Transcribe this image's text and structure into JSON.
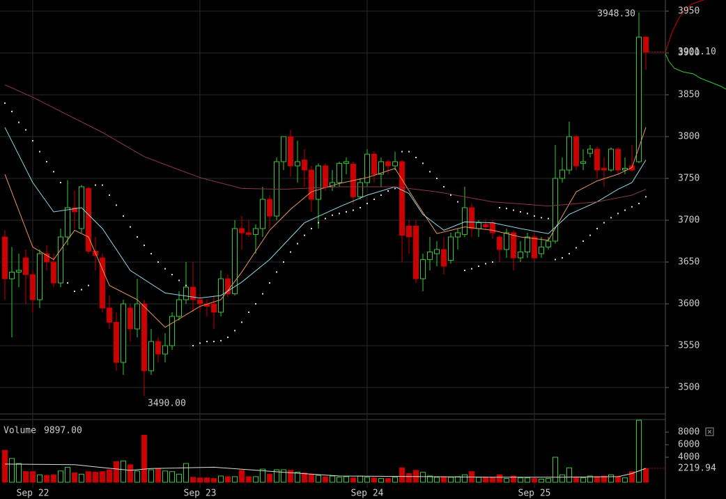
{
  "chart_data": {
    "type": "candlestick",
    "open": [
      3680,
      3630,
      3638,
      3655,
      3635,
      3605,
      3660,
      3650,
      3625,
      3680,
      3715,
      3690,
      3738,
      3663,
      3655,
      3595,
      3578,
      3530,
      3595,
      3570,
      3600,
      3520,
      3555,
      3540,
      3550,
      3585,
      3605,
      3620,
      3605,
      3600,
      3600,
      3590,
      3630,
      3612,
      3690,
      3685,
      3683,
      3690,
      3725,
      3705,
      3770,
      3800,
      3765,
      3772,
      3760,
      3725,
      3765,
      3740,
      3745,
      3768,
      3767,
      3728,
      3745,
      3779,
      3755,
      3770,
      3765,
      3770,
      3693,
      3693,
      3630,
      3653,
      3660,
      3665,
      3652,
      3680,
      3683,
      3715,
      3690,
      3695,
      3697,
      3680,
      3665,
      3685,
      3655,
      3662,
      3680,
      3660,
      3668,
      3675,
      3750,
      3760,
      3800,
      3768,
      3780,
      3785,
      3762,
      3760,
      3785,
      3760,
      3765,
      3770,
      3919
    ],
    "high": [
      3688,
      3668,
      3660,
      3665,
      3640,
      3665,
      3670,
      3660,
      3690,
      3748,
      3735,
      3742,
      3740,
      3680,
      3660,
      3610,
      3590,
      3605,
      3600,
      3630,
      3605,
      3570,
      3560,
      3565,
      3590,
      3615,
      3650,
      3650,
      3612,
      3605,
      3610,
      3640,
      3635,
      3700,
      3705,
      3700,
      3695,
      3740,
      3730,
      3775,
      3800,
      3808,
      3795,
      3785,
      3765,
      3768,
      3768,
      3760,
      3770,
      3775,
      3770,
      3750,
      3785,
      3782,
      3775,
      3772,
      3782,
      3772,
      3700,
      3700,
      3660,
      3680,
      3675,
      3680,
      3685,
      3690,
      3740,
      3720,
      3700,
      3700,
      3700,
      3682,
      3690,
      3688,
      3675,
      3685,
      3685,
      3680,
      3680,
      3790,
      3775,
      3818,
      3802,
      3785,
      3790,
      3788,
      3775,
      3787,
      3787,
      3775,
      3790,
      3948.3,
      3920
    ],
    "low": [
      3605,
      3560,
      3620,
      3600,
      3590,
      3595,
      3640,
      3620,
      3620,
      3670,
      3690,
      3685,
      3660,
      3640,
      3590,
      3570,
      3520,
      3515,
      3555,
      3560,
      3490,
      3515,
      3530,
      3530,
      3545,
      3580,
      3600,
      3590,
      3590,
      3585,
      3570,
      3585,
      3608,
      3610,
      3665,
      3680,
      3660,
      3680,
      3690,
      3700,
      3760,
      3752,
      3745,
      3740,
      3710,
      3690,
      3735,
      3735,
      3740,
      3755,
      3720,
      3725,
      3740,
      3745,
      3740,
      3755,
      3760,
      3650,
      3660,
      3625,
      3615,
      3640,
      3645,
      3635,
      3648,
      3665,
      3680,
      3680,
      3680,
      3688,
      3678,
      3650,
      3655,
      3640,
      3650,
      3655,
      3650,
      3655,
      3665,
      3672,
      3745,
      3755,
      3760,
      3760,
      3775,
      3750,
      3740,
      3758,
      3755,
      3755,
      3758,
      3768,
      3880
    ],
    "close": [
      3630,
      3638,
      3640,
      3635,
      3605,
      3660,
      3650,
      3625,
      3680,
      3715,
      3710,
      3740,
      3663,
      3658,
      3595,
      3578,
      3530,
      3600,
      3570,
      3600,
      3520,
      3555,
      3540,
      3550,
      3585,
      3605,
      3620,
      3605,
      3600,
      3597,
      3590,
      3630,
      3612,
      3690,
      3685,
      3683,
      3690,
      3725,
      3705,
      3770,
      3800,
      3765,
      3770,
      3760,
      3725,
      3765,
      3740,
      3745,
      3768,
      3770,
      3728,
      3745,
      3779,
      3755,
      3770,
      3765,
      3770,
      3682,
      3680,
      3630,
      3653,
      3662,
      3665,
      3645,
      3680,
      3685,
      3715,
      3690,
      3697,
      3692,
      3685,
      3665,
      3685,
      3655,
      3662,
      3680,
      3655,
      3668,
      3675,
      3750,
      3760,
      3800,
      3765,
      3770,
      3785,
      3760,
      3760,
      3785,
      3760,
      3762,
      3760,
      3919,
      3901.1
    ],
    "up_color": "#33cc33",
    "down_color": "#cc0000",
    "grid": true,
    "xlim": [
      -0.7,
      94.8
    ],
    "xticks": [
      {
        "value": 4,
        "label": "Sep 22"
      },
      {
        "value": 28,
        "label": "Sep 23"
      },
      {
        "value": 52,
        "label": "Sep 24"
      },
      {
        "value": 76,
        "label": "Sep 25"
      }
    ],
    "ylim": [
      3467.5,
      3963.3
    ],
    "yticks": [
      3500,
      3550,
      3600,
      3650,
      3700,
      3750,
      3800,
      3850,
      3900,
      3950
    ],
    "moving_averages": [
      {
        "color": "#e8965a",
        "x": [
          0,
          4,
          7,
          10,
          12,
          15,
          19,
          23,
          28,
          31,
          34,
          38,
          41,
          44,
          48,
          52,
          56,
          59,
          62,
          66,
          70,
          74,
          78,
          82,
          85,
          88,
          90,
          92
        ],
        "values": [
          3755,
          3668,
          3653,
          3688,
          3680,
          3622,
          3605,
          3572,
          3597,
          3605,
          3638,
          3688,
          3713,
          3734,
          3744,
          3751,
          3762,
          3722,
          3684,
          3692,
          3688,
          3680,
          3676,
          3734,
          3747,
          3755,
          3763,
          3811
        ]
      },
      {
        "color": "#8fd8e8",
        "x": [
          0,
          4,
          7,
          11,
          14,
          18,
          23,
          28,
          31,
          34,
          38,
          43,
          48,
          52,
          56,
          58,
          60,
          63,
          66,
          70,
          74,
          78,
          81,
          85,
          88,
          90,
          92
        ],
        "values": [
          3811,
          3745,
          3710,
          3715,
          3690,
          3640,
          3613,
          3607,
          3610,
          3626,
          3653,
          3697,
          3716,
          3730,
          3740,
          3732,
          3707,
          3688,
          3698,
          3697,
          3690,
          3684,
          3707,
          3722,
          3737,
          3745,
          3772
        ]
      },
      {
        "color": "#8a3a4a",
        "x": [
          0,
          4,
          9,
          14,
          20,
          28,
          34,
          40,
          48,
          56,
          62,
          70,
          78,
          85,
          90,
          92
        ],
        "values": [
          3862,
          3847,
          3826,
          3805,
          3776,
          3751,
          3738,
          3737,
          3740,
          3740,
          3734,
          3722,
          3717,
          3722,
          3730,
          3737
        ]
      }
    ],
    "sar": {
      "color": "#dddddd",
      "values": [
        3840,
        3830,
        3817,
        3808,
        3795,
        3782,
        3770,
        3758,
        3745,
        3625,
        3615,
        3617,
        3622,
        3742,
        3742,
        3730,
        3718,
        3705,
        3692,
        3680,
        3670,
        3660,
        3650,
        3642,
        3635,
        3628,
        3622,
        3550,
        3553,
        3555,
        3555,
        3556,
        3560,
        3568,
        3578,
        3590,
        3600,
        3612,
        3625,
        3638,
        3650,
        3662,
        3672,
        3682,
        3690,
        3697,
        3702,
        3706,
        3708,
        3710,
        3712,
        3715,
        3720,
        3725,
        3730,
        3735,
        3738,
        3782,
        3782,
        3775,
        3768,
        3758,
        3750,
        3740,
        3730,
        3722,
        3640,
        3642,
        3645,
        3648,
        3650,
        3715,
        3714,
        3712,
        3710,
        3708,
        3705,
        3703,
        3702,
        3653,
        3655,
        3660,
        3667,
        3675,
        3682,
        3690,
        3697,
        3703,
        3708,
        3712,
        3716,
        3720,
        3728
      ]
    },
    "high_annotation": {
      "value": 3948.3,
      "label": "3948.30",
      "index": 91
    },
    "low_annotation": {
      "value": 3490,
      "label": "3490.00",
      "index": 20
    },
    "last_price": {
      "value": 3901.1,
      "label": "3901.10"
    },
    "volume": {
      "label": "Volume",
      "max_label": {
        "value": 9897,
        "label": "9897.00"
      },
      "values": [
        5100,
        3800,
        3000,
        1700,
        1700,
        1200,
        1100,
        1200,
        1800,
        2400,
        1500,
        1300,
        1700,
        1600,
        1700,
        2000,
        3300,
        3400,
        2800,
        1800,
        7500,
        2000,
        2200,
        1800,
        1700,
        1300,
        3000,
        800,
        700,
        700,
        600,
        1000,
        900,
        900,
        1900,
        900,
        900,
        2100,
        1300,
        2000,
        2000,
        1900,
        1600,
        1500,
        1300,
        1100,
        900,
        1000,
        800,
        900,
        700,
        1000,
        800,
        700,
        600,
        600,
        800,
        2300,
        1400,
        1900,
        1600,
        1000,
        800,
        900,
        800,
        900,
        1200,
        1700,
        800,
        800,
        800,
        1200,
        600,
        1000,
        700,
        700,
        600,
        500,
        600,
        4000,
        1200,
        2300,
        800,
        700,
        1000,
        900,
        1000,
        1200,
        900,
        700,
        1700,
        9897,
        2200
      ],
      "ylim": [
        0,
        9900
      ],
      "yticks": [
        4000,
        6000,
        8000
      ],
      "ma": {
        "color": "#dddddd",
        "x": [
          0,
          10,
          18,
          21,
          30,
          40,
          48,
          60,
          70,
          80,
          88,
          90,
          92
        ],
        "values": [
          2900,
          2800,
          1900,
          2200,
          2400,
          1600,
          1000,
          900,
          800,
          800,
          900,
          1400,
          2219.94
        ]
      }
    }
  }
}
